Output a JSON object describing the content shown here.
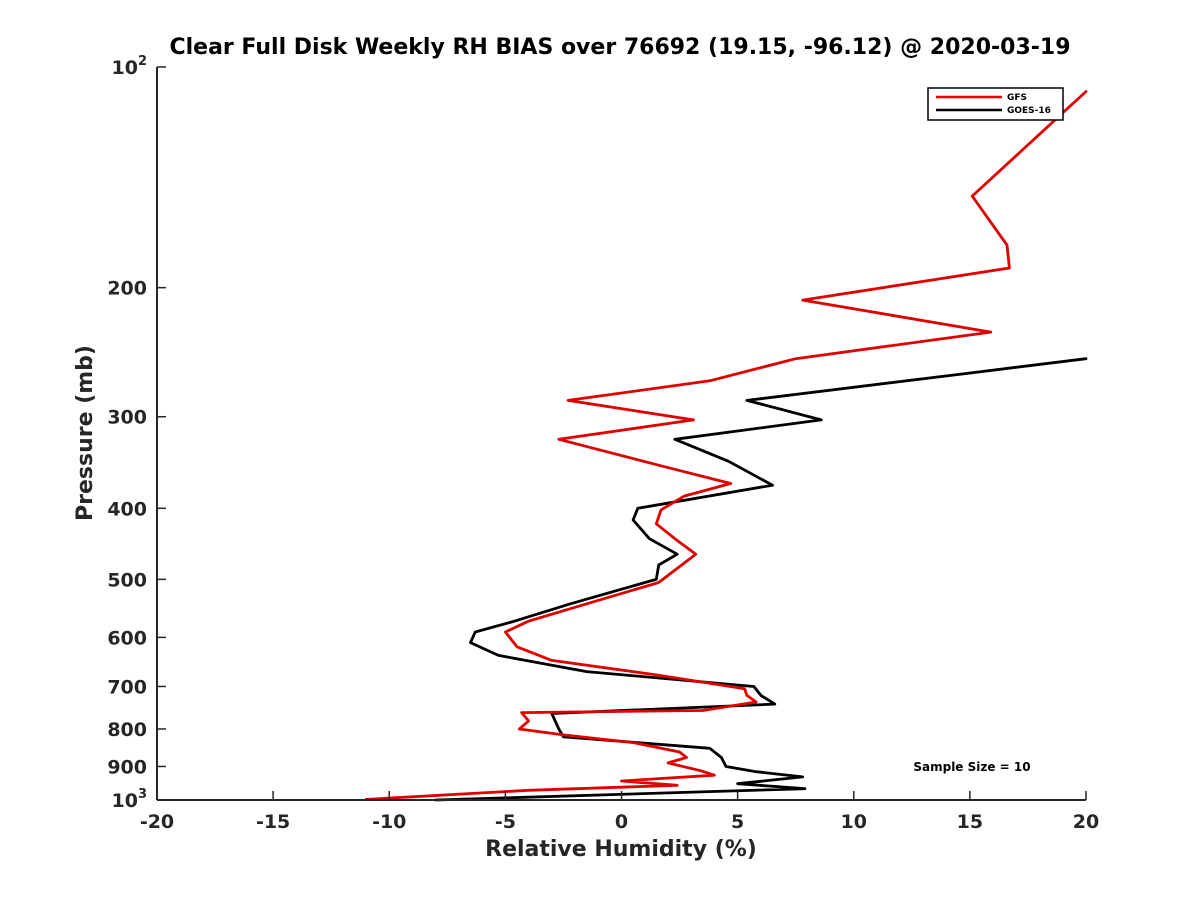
{
  "chart_data": {
    "type": "line",
    "title": "Clear Full Disk Weekly RH BIAS over 76692 (19.15, -96.12) @ 2020-03-19",
    "xlabel": "Relative Humidity (%)",
    "ylabel": "Pressure (mb)",
    "xlim": [
      -20,
      20
    ],
    "ylim": [
      100,
      1000
    ],
    "yscale": "log",
    "yreverse": true,
    "x_ticks": [
      "-20",
      "-15",
      "-10",
      "-5",
      "0",
      "5",
      "10",
      "15",
      "20"
    ],
    "y_ticks": [
      {
        "value": 100,
        "base": "10",
        "exp": "2"
      },
      {
        "value": 200,
        "label": "200"
      },
      {
        "value": 300,
        "label": "300"
      },
      {
        "value": 400,
        "label": "400"
      },
      {
        "value": 500,
        "label": "500"
      },
      {
        "value": 600,
        "label": "600"
      },
      {
        "value": 700,
        "label": "700"
      },
      {
        "value": 800,
        "label": "800"
      },
      {
        "value": 900,
        "label": "900"
      },
      {
        "value": 1000,
        "base": "10",
        "exp": "3"
      }
    ],
    "legend_position": "top-right",
    "annotation": "Sample Size = 10",
    "series": [
      {
        "name": "GFS",
        "color": "#e00000",
        "points": [
          [
            20.0,
            108
          ],
          [
            15.1,
            150
          ],
          [
            16.6,
            175
          ],
          [
            16.7,
            188
          ],
          [
            7.8,
            208
          ],
          [
            15.9,
            230
          ],
          [
            7.5,
            250
          ],
          [
            3.8,
            268
          ],
          [
            -2.3,
            285
          ],
          [
            3.1,
            303
          ],
          [
            -2.7,
            322
          ],
          [
            1.7,
            350
          ],
          [
            4.7,
            370
          ],
          [
            2.7,
            385
          ],
          [
            1.7,
            402
          ],
          [
            1.5,
            420
          ],
          [
            2.3,
            440
          ],
          [
            3.2,
            462
          ],
          [
            1.6,
            505
          ],
          [
            -1.5,
            540
          ],
          [
            -4.0,
            570
          ],
          [
            -5.0,
            590
          ],
          [
            -4.5,
            618
          ],
          [
            -3.0,
            645
          ],
          [
            1.5,
            675
          ],
          [
            5.3,
            705
          ],
          [
            5.4,
            720
          ],
          [
            5.8,
            735
          ],
          [
            3.5,
            755
          ],
          [
            -4.3,
            760
          ],
          [
            -4.0,
            780
          ],
          [
            -4.4,
            800
          ],
          [
            -2.5,
            815
          ],
          [
            0.5,
            835
          ],
          [
            2.5,
            860
          ],
          [
            2.8,
            875
          ],
          [
            2.0,
            890
          ],
          [
            3.4,
            912
          ],
          [
            4.0,
            925
          ],
          [
            0.0,
            942
          ],
          [
            2.4,
            955
          ],
          [
            -4.0,
            970
          ],
          [
            -11.0,
            998
          ]
        ]
      },
      {
        "name": "GOES-16",
        "color": "#000000",
        "points": [
          [
            20.0,
            250
          ],
          [
            14.8,
            262
          ],
          [
            5.4,
            285
          ],
          [
            8.6,
            303
          ],
          [
            2.3,
            322
          ],
          [
            4.6,
            345
          ],
          [
            6.5,
            372
          ],
          [
            0.7,
            400
          ],
          [
            0.5,
            415
          ],
          [
            1.2,
            440
          ],
          [
            2.4,
            462
          ],
          [
            1.6,
            478
          ],
          [
            1.5,
            500
          ],
          [
            -2.2,
            540
          ],
          [
            -4.6,
            570
          ],
          [
            -6.3,
            590
          ],
          [
            -6.5,
            610
          ],
          [
            -5.3,
            635
          ],
          [
            -1.5,
            668
          ],
          [
            5.7,
            700
          ],
          [
            6.0,
            720
          ],
          [
            6.6,
            740
          ],
          [
            -3.0,
            762
          ],
          [
            -2.7,
            800
          ],
          [
            -2.5,
            820
          ],
          [
            3.8,
            850
          ],
          [
            4.3,
            875
          ],
          [
            4.5,
            900
          ],
          [
            5.8,
            915
          ],
          [
            7.8,
            930
          ],
          [
            5.0,
            950
          ],
          [
            7.9,
            965
          ],
          [
            -8.0,
            1000
          ]
        ]
      }
    ]
  }
}
